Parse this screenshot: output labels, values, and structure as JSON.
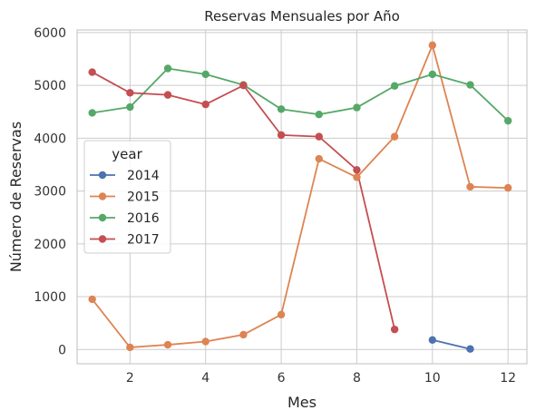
{
  "chart_data": {
    "type": "line",
    "title": "Reservas Mensuales por Año",
    "xlabel": "Mes",
    "ylabel": "Número de Reservas",
    "xlim": [
      0.6,
      12.5
    ],
    "ylim": [
      -270,
      6050
    ],
    "xticks": [
      2,
      4,
      6,
      8,
      10,
      12
    ],
    "yticks": [
      0,
      1000,
      2000,
      3000,
      4000,
      5000,
      6000
    ],
    "grid": true,
    "legend": {
      "title": "year",
      "placement": "center-left"
    },
    "series": [
      {
        "name": "2014",
        "color": "#4c72b0",
        "x": [
          10,
          11
        ],
        "y": [
          180,
          10
        ]
      },
      {
        "name": "2015",
        "color": "#dd8452",
        "x": [
          1,
          2,
          3,
          4,
          5,
          6,
          7,
          8,
          9,
          10,
          11,
          12
        ],
        "y": [
          950,
          40,
          90,
          150,
          280,
          660,
          3610,
          3260,
          4030,
          5760,
          3080,
          3060
        ]
      },
      {
        "name": "2016",
        "color": "#55a868",
        "x": [
          1,
          2,
          3,
          4,
          5,
          6,
          7,
          8,
          9,
          10,
          11,
          12
        ],
        "y": [
          4480,
          4590,
          5320,
          5210,
          5010,
          4550,
          4450,
          4580,
          4990,
          5210,
          5010,
          4330
        ]
      },
      {
        "name": "2017",
        "color": "#c44e52",
        "x": [
          1,
          2,
          3,
          4,
          5,
          6,
          7,
          8,
          9
        ],
        "y": [
          5250,
          4860,
          4820,
          4640,
          5000,
          4060,
          4030,
          3400,
          380
        ]
      }
    ]
  }
}
